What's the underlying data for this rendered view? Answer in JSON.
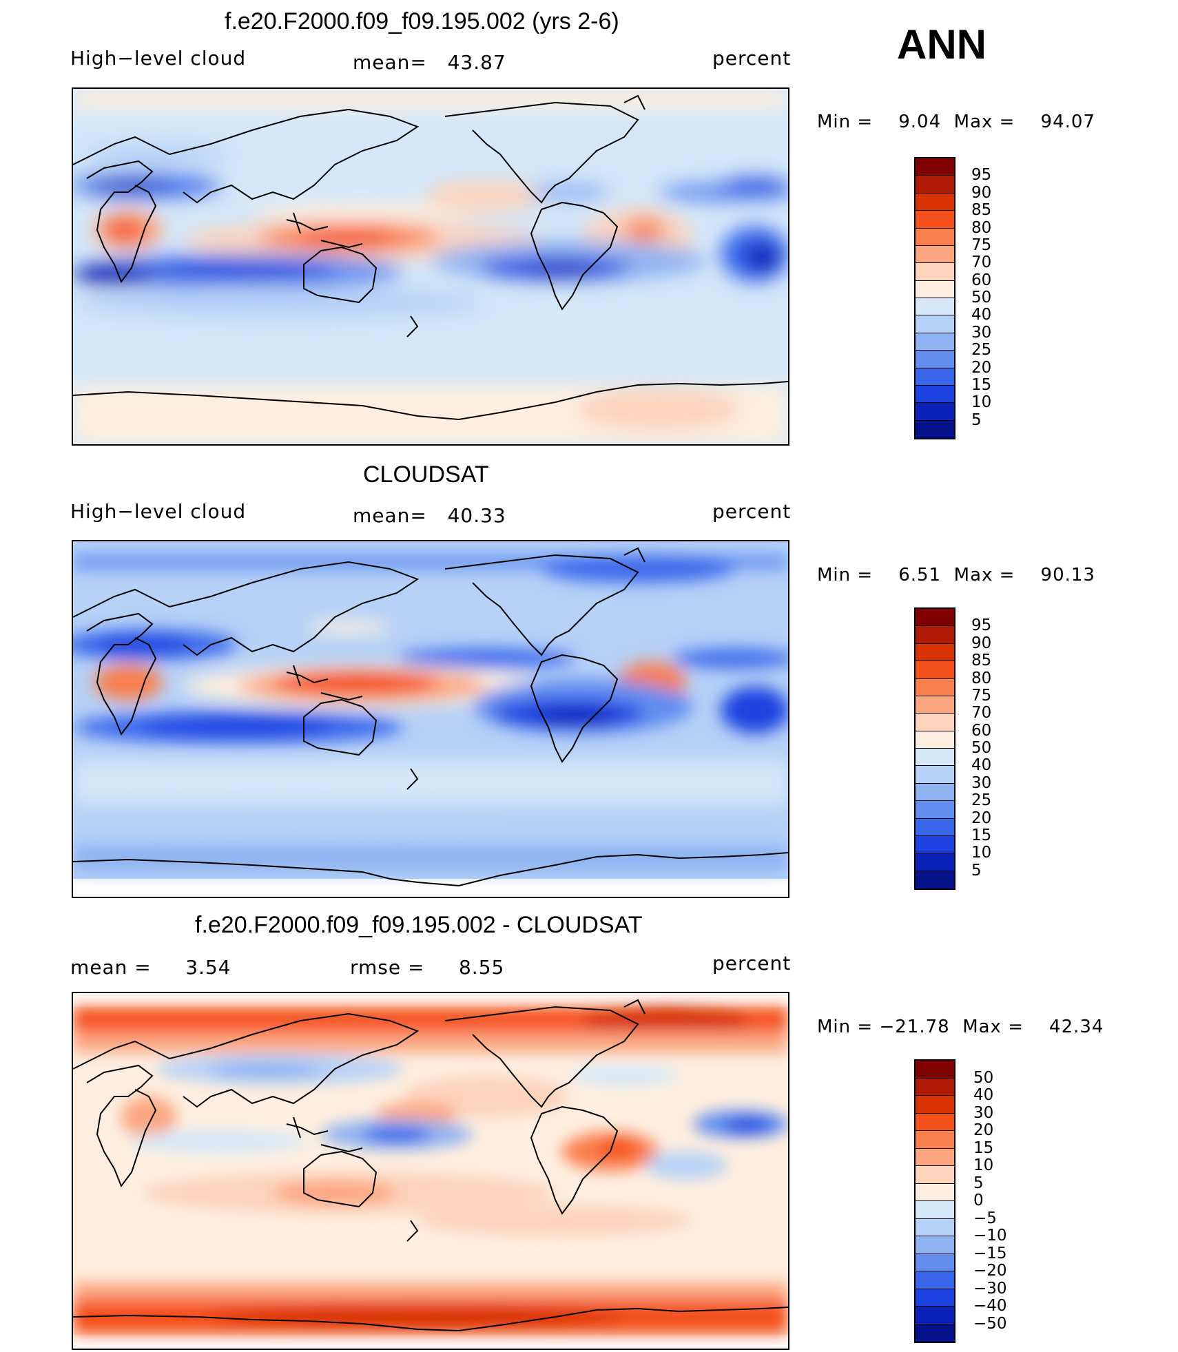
{
  "corner_label": "ANN",
  "panels": [
    {
      "title": "f.e20.F2000.f09_f09.195.002 (yrs 2-6)",
      "left_label": "High−level cloud",
      "center_label": "mean=   43.87",
      "right_label": "percent",
      "minmax": "Min =    9.04  Max =    94.07",
      "legend_levels": [
        "95",
        "90",
        "85",
        "80",
        "75",
        "70",
        "60",
        "50",
        "40",
        "30",
        "25",
        "20",
        "15",
        "10",
        "5"
      ],
      "legend_colors": [
        "#7f0000",
        "#b01b06",
        "#d83205",
        "#f4511c",
        "#fa7f4e",
        "#fca680",
        "#fdd3bb",
        "#fdeedf",
        "#d4e8f9",
        "#b6d2f7",
        "#8fb3f2",
        "#638ef0",
        "#3a68ec",
        "#1c43e0",
        "#0a22b8",
        "#06128a"
      ]
    },
    {
      "title": "CLOUDSAT",
      "left_label": "High−level cloud",
      "center_label": "mean=   40.33",
      "right_label": "percent",
      "minmax": "Min =    6.51  Max =    90.13",
      "legend_levels": [
        "95",
        "90",
        "85",
        "80",
        "75",
        "70",
        "60",
        "50",
        "40",
        "30",
        "25",
        "20",
        "15",
        "10",
        "5"
      ],
      "legend_colors": [
        "#7f0000",
        "#b01b06",
        "#d83205",
        "#f4511c",
        "#fa7f4e",
        "#fca680",
        "#fdd3bb",
        "#fdeedf",
        "#d4e8f9",
        "#b6d2f7",
        "#8fb3f2",
        "#638ef0",
        "#3a68ec",
        "#1c43e0",
        "#0a22b8",
        "#06128a"
      ]
    },
    {
      "title": "f.e20.F2000.f09_f09.195.002 - CLOUDSAT",
      "left_label": "mean =     3.54",
      "center_label": "rmse =     8.55",
      "right_label": "percent",
      "minmax": "Min = −21.78  Max =    42.34",
      "legend_levels": [
        "50",
        "40",
        "30",
        "20",
        "15",
        "10",
        "5",
        "0",
        "−5",
        "−10",
        "−15",
        "−20",
        "−30",
        "−40",
        "−50"
      ],
      "legend_colors": [
        "#7f0000",
        "#b01b06",
        "#d83205",
        "#f4511c",
        "#fa7f4e",
        "#fca680",
        "#fdd3bb",
        "#fdeedf",
        "#d4e8f9",
        "#b6d2f7",
        "#8fb3f2",
        "#638ef0",
        "#3a68ec",
        "#1c43e0",
        "#0a22b8",
        "#06128a"
      ]
    }
  ]
}
